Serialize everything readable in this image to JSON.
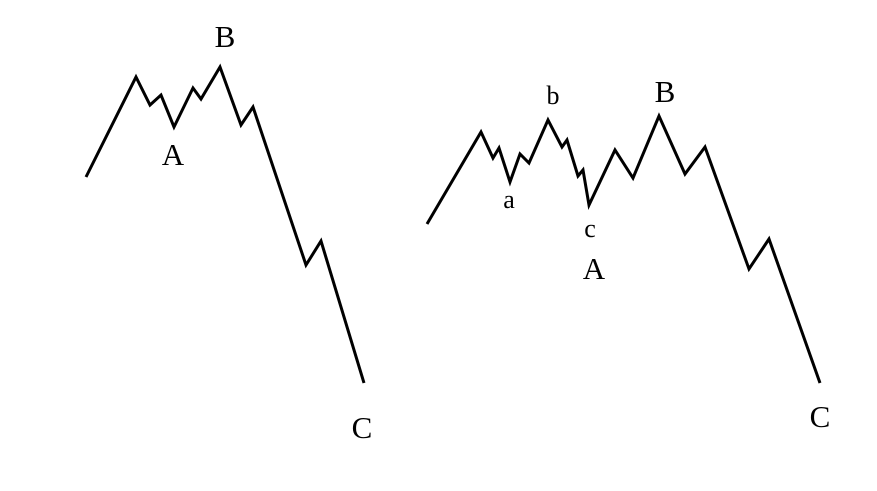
{
  "diagrams": [
    {
      "name": "flat-correction",
      "labels": {
        "a_big": "A",
        "b_big": "B",
        "c_big": "C"
      }
    },
    {
      "name": "expanded-flat-correction",
      "labels": {
        "a_small": "a",
        "b_small": "b",
        "c_small": "c",
        "a_big": "A",
        "b_big": "B",
        "c_big": "C"
      }
    }
  ],
  "colors": {
    "background": "#ffffff",
    "line": "#000000",
    "text": "#000000"
  }
}
